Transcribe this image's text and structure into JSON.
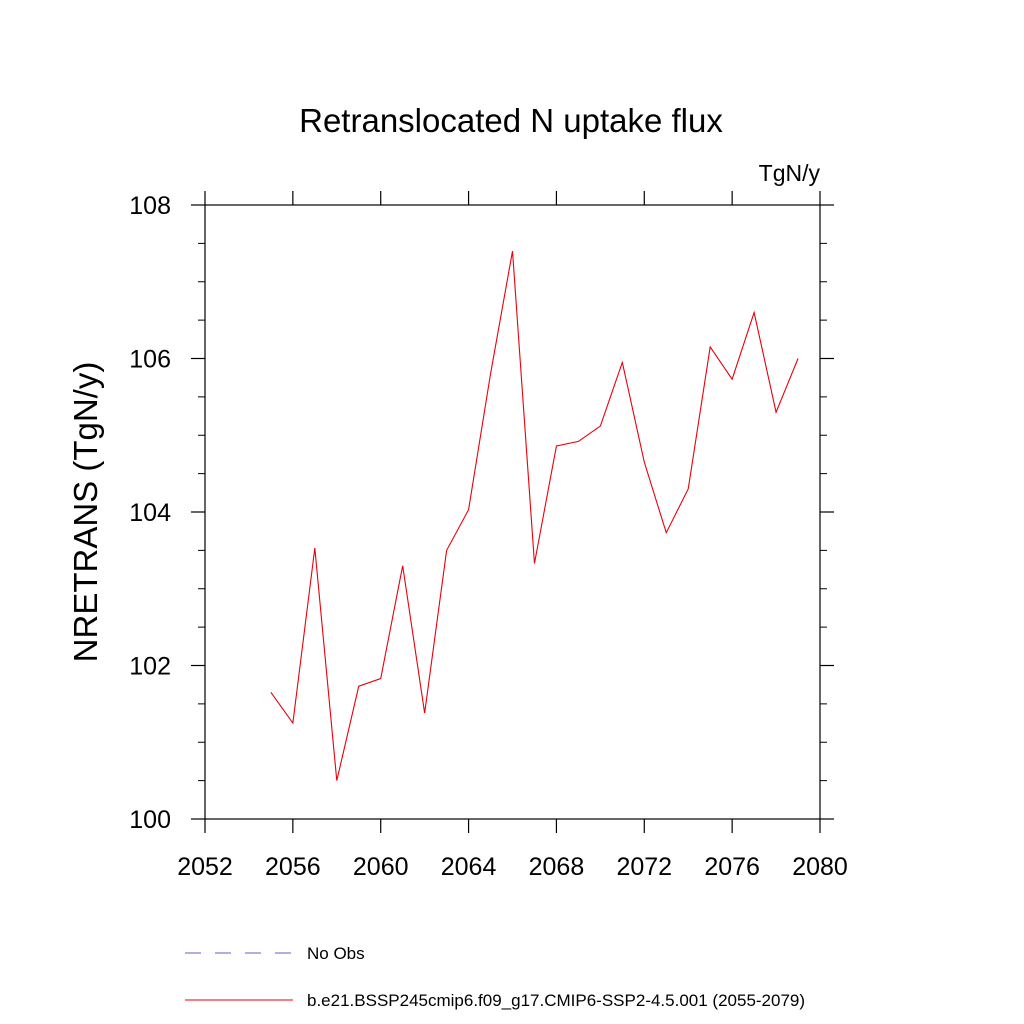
{
  "chart_data": {
    "type": "line",
    "title": "Retranslocated N uptake flux",
    "units_label": "TgN/y",
    "ylabel": "NRETRANS  (TgN/y)",
    "xlabel": "",
    "xlim": [
      2052,
      2080
    ],
    "ylim": [
      100,
      108
    ],
    "x_ticks": [
      2052,
      2056,
      2060,
      2064,
      2068,
      2072,
      2076,
      2080
    ],
    "y_ticks": [
      100,
      102,
      104,
      106,
      108
    ],
    "grid": false,
    "legend_position": "bottom",
    "series": [
      {
        "name": "No Obs",
        "color": "#6a5acd",
        "dash": true,
        "x": [],
        "values": []
      },
      {
        "name": "b.e21.BSSP245cmip6.f09_g17.CMIP6-SSP2-4.5.001 (2055-2079)",
        "color": "#e8000b",
        "dash": false,
        "x": [
          2055,
          2056,
          2057,
          2058,
          2059,
          2060,
          2061,
          2062,
          2063,
          2064,
          2065,
          2066,
          2067,
          2068,
          2069,
          2070,
          2071,
          2072,
          2073,
          2074,
          2075,
          2076,
          2077,
          2078,
          2079
        ],
        "values": [
          101.65,
          101.25,
          103.53,
          100.5,
          101.73,
          101.83,
          103.3,
          101.38,
          103.5,
          104.03,
          105.8,
          107.4,
          103.33,
          104.86,
          104.92,
          105.12,
          105.95,
          104.65,
          103.73,
          104.3,
          106.15,
          105.73,
          106.6,
          105.3,
          106.0
        ]
      }
    ]
  }
}
